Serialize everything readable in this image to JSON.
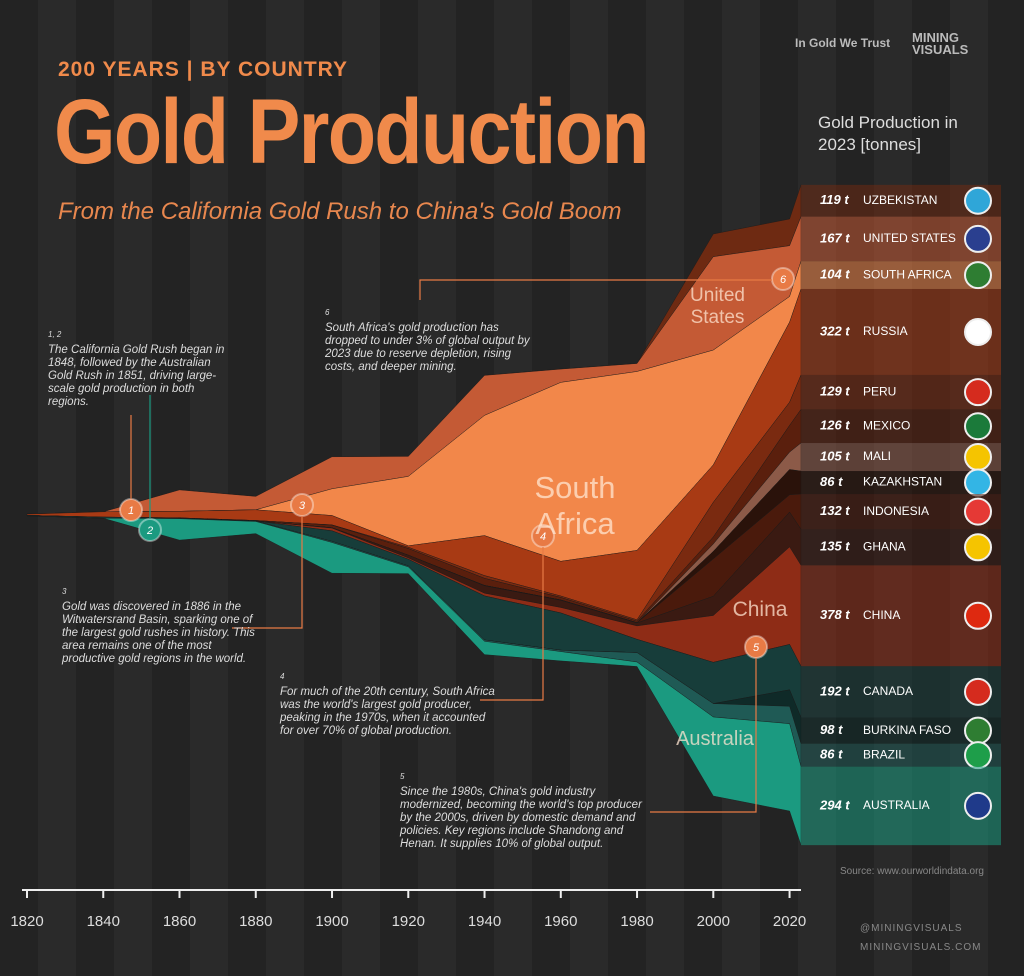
{
  "header": {
    "kicker": "200 YEARS | BY COUNTRY",
    "title": "Gold Production",
    "subtitle": "From the California Gold Rush to China's Gold Boom",
    "brand_left": "In Gold We Trust",
    "brand_right": "MINING VISUALS"
  },
  "chart_data": {
    "type": "streamgraph",
    "legend_title": "Gold Production in 2023 [tonnes]",
    "x": [
      1820,
      1840,
      1860,
      1880,
      1900,
      1920,
      1940,
      1960,
      1980,
      2000,
      2020,
      2023
    ],
    "xlim": [
      1820,
      2023
    ],
    "xticks": [
      1820,
      1840,
      1860,
      1880,
      1900,
      1920,
      1940,
      1960,
      1980,
      2000,
      2020
    ],
    "series": [
      {
        "name": "UZBEKISTAN",
        "color": "#6e2a12",
        "values": [
          0,
          0,
          0,
          0,
          0,
          0,
          0,
          0,
          0,
          85,
          100,
          119
        ],
        "value_labels": [
          null,
          null,
          null,
          null,
          null,
          null,
          null,
          null,
          null,
          null,
          null,
          "119 t"
        ]
      },
      {
        "name": "UNITED STATES",
        "color": "#c45a35",
        "values": [
          0,
          0,
          80,
          50,
          120,
          75,
          150,
          50,
          30,
          350,
          190,
          167
        ],
        "value_labels": [
          null,
          null,
          null,
          null,
          null,
          null,
          null,
          null,
          null,
          null,
          null,
          "167 t"
        ]
      },
      {
        "name": "SOUTH AFRICA",
        "color": "#f2874a",
        "values": [
          0,
          0,
          0,
          0,
          100,
          260,
          450,
          670,
          670,
          430,
          96,
          104
        ],
        "value_labels": [
          null,
          null,
          null,
          null,
          null,
          null,
          null,
          null,
          null,
          null,
          null,
          "104 t"
        ]
      },
      {
        "name": "RUSSIA",
        "color": "#a83a14",
        "values": [
          5,
          20,
          25,
          40,
          35,
          5,
          150,
          130,
          260,
          140,
          300,
          322
        ],
        "value_labels": [
          null,
          null,
          null,
          null,
          null,
          null,
          null,
          null,
          null,
          null,
          null,
          "322 t"
        ]
      },
      {
        "name": "PERU",
        "color": "#7a2a10",
        "values": [
          0,
          0,
          0,
          0,
          1,
          5,
          10,
          5,
          5,
          130,
          87,
          129
        ],
        "value_labels": [
          null,
          null,
          null,
          null,
          null,
          null,
          null,
          null,
          null,
          null,
          null,
          "129 t"
        ]
      },
      {
        "name": "MEXICO",
        "color": "#5a1f0d",
        "values": [
          0,
          1,
          1,
          2,
          10,
          25,
          27,
          10,
          6,
          26,
          100,
          126
        ],
        "value_labels": [
          null,
          null,
          null,
          null,
          null,
          null,
          null,
          null,
          null,
          null,
          null,
          "126 t"
        ]
      },
      {
        "name": "MALI",
        "color": "#8c5a48",
        "values": [
          0,
          0,
          0,
          0,
          0,
          0,
          0,
          0,
          0,
          28,
          65,
          105
        ],
        "value_labels": [
          null,
          null,
          null,
          null,
          null,
          null,
          null,
          null,
          null,
          null,
          null,
          "105 t"
        ]
      },
      {
        "name": "KAZAKHSTAN",
        "color": "#2a120a",
        "values": [
          0,
          0,
          0,
          0,
          0,
          0,
          0,
          0,
          0,
          28,
          95,
          86
        ],
        "value_labels": [
          null,
          null,
          null,
          null,
          null,
          null,
          null,
          null,
          null,
          null,
          null,
          "86 t"
        ]
      },
      {
        "name": "INDONESIA",
        "color": "#4a1a0c",
        "values": [
          0,
          0,
          0,
          0,
          0,
          0,
          1,
          1,
          1,
          140,
          65,
          132
        ],
        "value_labels": [
          null,
          null,
          null,
          null,
          null,
          null,
          null,
          null,
          null,
          null,
          null,
          "132 t"
        ]
      },
      {
        "name": "GHANA",
        "color": "#3a1a12",
        "values": [
          0,
          0,
          0,
          0,
          1,
          10,
          28,
          27,
          11,
          72,
          130,
          135
        ],
        "value_labels": [
          null,
          null,
          null,
          null,
          null,
          null,
          null,
          null,
          null,
          null,
          null,
          "135 t"
        ]
      },
      {
        "name": "CHINA",
        "color": "#8e2c16",
        "values": [
          0,
          0,
          0,
          0,
          10,
          5,
          10,
          20,
          50,
          175,
          365,
          378
        ],
        "value_labels": [
          null,
          null,
          null,
          null,
          null,
          null,
          null,
          null,
          null,
          null,
          null,
          "378 t"
        ]
      },
      {
        "name": "CANADA",
        "color": "#173d3a",
        "values": [
          0,
          0,
          0,
          0,
          40,
          25,
          165,
          140,
          50,
          155,
          170,
          192
        ],
        "value_labels": [
          null,
          null,
          null,
          null,
          null,
          null,
          null,
          null,
          null,
          null,
          null,
          "192 t"
        ]
      },
      {
        "name": "BURKINA FASO",
        "color": "#0f2a28",
        "values": [
          0,
          0,
          0,
          0,
          0,
          0,
          0,
          0,
          0,
          0,
          62,
          98
        ],
        "value_labels": [
          null,
          null,
          null,
          null,
          null,
          null,
          null,
          null,
          null,
          null,
          null,
          "98 t"
        ]
      },
      {
        "name": "BRAZIL",
        "color": "#1f5a55",
        "values": [
          2,
          3,
          2,
          2,
          4,
          4,
          5,
          5,
          35,
          50,
          65,
          86
        ],
        "value_labels": [
          null,
          null,
          null,
          null,
          null,
          null,
          null,
          null,
          null,
          null,
          null,
          "86 t"
        ]
      },
      {
        "name": "AUSTRALIA",
        "color": "#1b9a80",
        "values": [
          0,
          0,
          80,
          45,
          115,
          25,
          50,
          35,
          17,
          296,
          327,
          294
        ],
        "value_labels": [
          null,
          null,
          null,
          null,
          null,
          null,
          null,
          null,
          null,
          null,
          null,
          "294 t"
        ]
      }
    ],
    "area_labels": [
      "South Africa",
      "United States",
      "China",
      "Australia"
    ],
    "markers": [
      "1",
      "2",
      "3",
      "4",
      "5",
      "6"
    ],
    "annotations": [
      {
        "number": "1, 2",
        "text": "The California Gold Rush began in 1848, followed by the Australian Gold Rush in 1851, driving large-scale gold production in both regions."
      },
      {
        "number": "3",
        "text": "Gold was discovered in 1886 in the Witwatersrand Basin, sparking one of the largest gold rushes in history. This area remains one of the most productive gold regions in the world."
      },
      {
        "number": "4",
        "text": "For much of the 20th century, South Africa was the world's largest gold producer, peaking in the 1970s, when it accounted for over 70% of global production."
      },
      {
        "number": "5",
        "text": "Since the 1980s, China's gold industry modernized, becoming the world's top producer by the 2000s, driven by domestic demand and policies. Key regions include Shandong and Henan. It supplies 10% of global output."
      },
      {
        "number": "6",
        "text": "South Africa's gold production has dropped to under 3% of global output by 2023 due to reserve depletion, rising costs, and deeper mining."
      }
    ]
  },
  "footer": {
    "source": "Source: www.ourworldindata.org",
    "handle": "@MININGVISUALS",
    "website": "MININGVISUALS.COM"
  }
}
